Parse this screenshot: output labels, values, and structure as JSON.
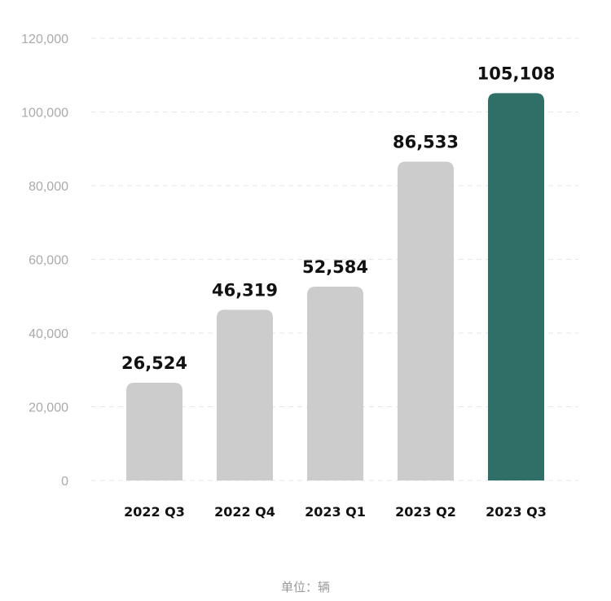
{
  "chart_data": {
    "type": "bar",
    "categories": [
      "2022 Q3",
      "2022 Q4",
      "2023 Q1",
      "2023 Q2",
      "2023 Q3"
    ],
    "values": [
      26524,
      46319,
      52584,
      86533,
      105108
    ],
    "value_labels": [
      "26,524",
      "46,319",
      "52,584",
      "86,533",
      "105,108"
    ],
    "highlight_index": 4,
    "ylim": [
      0,
      120000
    ],
    "yticks": [
      0,
      20000,
      40000,
      60000,
      80000,
      100000,
      120000
    ],
    "ytick_labels": [
      "0",
      "20,000",
      "40,000",
      "60,000",
      "80,000",
      "100,000",
      "120,000"
    ],
    "grid": true,
    "unit_note": "单位：辆",
    "colors": {
      "bar": "#cccccc",
      "highlight": "#2f6f68",
      "grid": "#e6e6e6",
      "tick_text": "#aaaaaa",
      "label_text": "#111111"
    }
  }
}
